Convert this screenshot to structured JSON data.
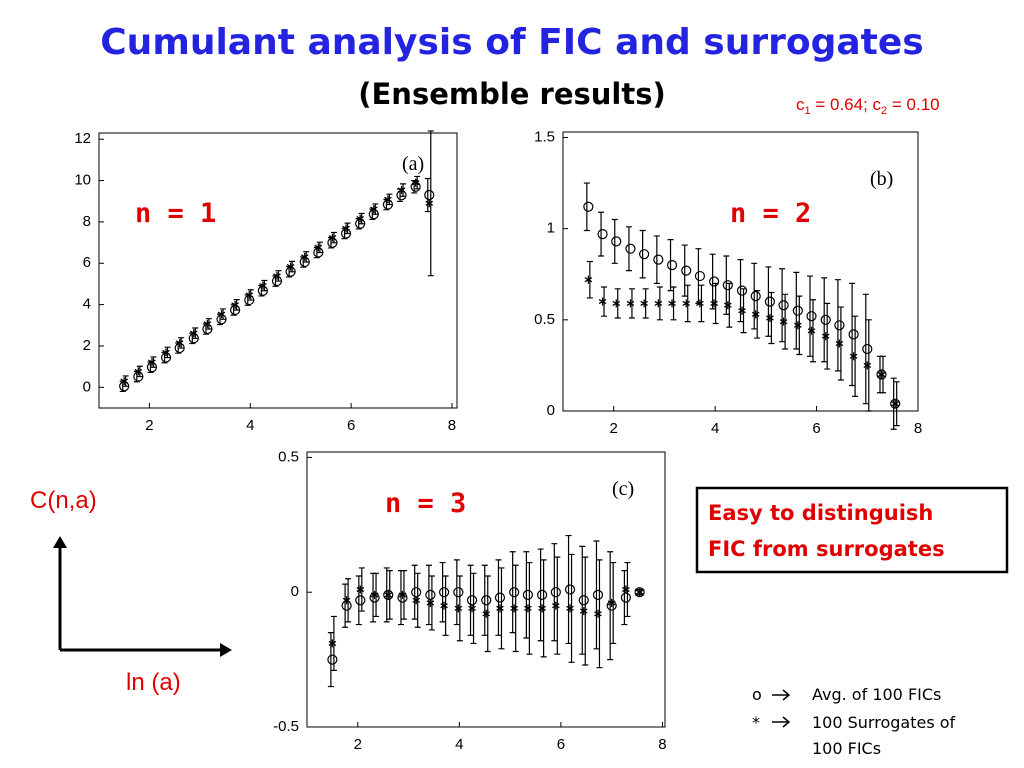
{
  "title": "Cumulant analysis of FIC and surrogates",
  "subtitle": "(Ensemble results)",
  "note": [
    "c",
    "1",
    " = 0.64; c",
    "2",
    " = 0.10"
  ],
  "y_label": "C(n,a)",
  "x_label": "ln (a)",
  "callout": [
    "Easy to distinguish",
    "FIC from surrogates"
  ],
  "legend": [
    {
      "symbol": "o",
      "text": [
        "Avg. of 100 FICs"
      ]
    },
    {
      "symbol": "*",
      "text": [
        "100 Surrogates of",
        "100 FICs"
      ]
    }
  ],
  "chart_data": [
    {
      "type": "scatter",
      "label": "(a)",
      "annotation": "n = 1",
      "x": [
        1.5,
        1.78,
        2.05,
        2.33,
        2.6,
        2.88,
        3.15,
        3.43,
        3.7,
        3.98,
        4.25,
        4.53,
        4.8,
        5.08,
        5.35,
        5.63,
        5.9,
        6.18,
        6.45,
        6.73,
        7.0,
        7.28,
        7.55
      ],
      "series": [
        {
          "marker": "o",
          "color": "#000000",
          "values": [
            0.05,
            0.52,
            0.97,
            1.44,
            1.9,
            2.37,
            2.82,
            3.29,
            3.74,
            4.22,
            4.67,
            5.14,
            5.59,
            6.06,
            6.52,
            6.99,
            7.44,
            7.91,
            8.37,
            8.84,
            9.29,
            9.7,
            9.3
          ],
          "errors": [
            0.25,
            0.25,
            0.25,
            0.25,
            0.25,
            0.25,
            0.25,
            0.25,
            0.25,
            0.25,
            0.25,
            0.25,
            0.25,
            0.25,
            0.25,
            0.25,
            0.25,
            0.25,
            0.25,
            0.25,
            0.3,
            0.3,
            0.8
          ]
        },
        {
          "marker": "*",
          "color": "#000000",
          "values": [
            0.3,
            0.77,
            1.22,
            1.69,
            2.15,
            2.62,
            3.07,
            3.54,
            3.99,
            4.47,
            4.92,
            5.39,
            5.84,
            6.31,
            6.77,
            7.24,
            7.69,
            8.16,
            8.62,
            9.09,
            9.54,
            9.9,
            8.9
          ],
          "errors": [
            0.25,
            0.25,
            0.25,
            0.25,
            0.25,
            0.25,
            0.25,
            0.25,
            0.25,
            0.25,
            0.25,
            0.25,
            0.25,
            0.25,
            0.25,
            0.25,
            0.25,
            0.25,
            0.25,
            0.25,
            0.3,
            0.3,
            3.5
          ]
        }
      ],
      "xlim": [
        1,
        8.1
      ],
      "ylim": [
        -1,
        12.3
      ],
      "xticks": [
        2,
        4,
        6,
        8
      ],
      "yticks": [
        0,
        2,
        4,
        6,
        8,
        10,
        12
      ]
    },
    {
      "type": "scatter",
      "label": "(b)",
      "annotation": "n = 2",
      "x": [
        1.5,
        1.78,
        2.05,
        2.33,
        2.6,
        2.88,
        3.15,
        3.43,
        3.7,
        3.98,
        4.25,
        4.53,
        4.8,
        5.08,
        5.35,
        5.63,
        5.9,
        6.18,
        6.45,
        6.73,
        7.0,
        7.28,
        7.55
      ],
      "series": [
        {
          "marker": "o",
          "color": "#000000",
          "values": [
            1.12,
            0.97,
            0.93,
            0.89,
            0.86,
            0.83,
            0.8,
            0.77,
            0.74,
            0.71,
            0.69,
            0.66,
            0.63,
            0.6,
            0.58,
            0.55,
            0.52,
            0.5,
            0.47,
            0.42,
            0.34,
            0.2,
            0.04
          ],
          "errors": [
            0.13,
            0.12,
            0.12,
            0.12,
            0.13,
            0.13,
            0.14,
            0.14,
            0.15,
            0.15,
            0.16,
            0.17,
            0.18,
            0.19,
            0.2,
            0.21,
            0.22,
            0.23,
            0.25,
            0.28,
            0.3,
            0.1,
            0.14
          ]
        },
        {
          "marker": "*",
          "color": "#000000",
          "values": [
            0.72,
            0.6,
            0.59,
            0.59,
            0.59,
            0.59,
            0.59,
            0.59,
            0.59,
            0.59,
            0.58,
            0.55,
            0.53,
            0.51,
            0.49,
            0.47,
            0.44,
            0.41,
            0.37,
            0.3,
            0.25,
            0.2,
            0.04
          ],
          "errors": [
            0.1,
            0.08,
            0.08,
            0.08,
            0.08,
            0.09,
            0.09,
            0.1,
            0.1,
            0.11,
            0.12,
            0.12,
            0.13,
            0.14,
            0.15,
            0.16,
            0.17,
            0.18,
            0.2,
            0.22,
            0.25,
            0.1,
            0.12
          ]
        }
      ],
      "xlim": [
        1,
        8
      ],
      "ylim": [
        0,
        1.53
      ],
      "xticks": [
        2,
        4,
        6,
        8
      ],
      "yticks": [
        0,
        0.5,
        1,
        1.5
      ]
    },
    {
      "type": "scatter",
      "label": "(c)",
      "annotation": "n = 3",
      "x": [
        1.5,
        1.78,
        2.05,
        2.33,
        2.6,
        2.88,
        3.15,
        3.43,
        3.7,
        3.98,
        4.25,
        4.53,
        4.8,
        5.08,
        5.35,
        5.63,
        5.9,
        6.18,
        6.45,
        6.73,
        7.0,
        7.28,
        7.55
      ],
      "series": [
        {
          "marker": "o",
          "color": "#000000",
          "values": [
            -0.25,
            -0.05,
            -0.03,
            -0.02,
            -0.01,
            -0.02,
            0,
            -0.01,
            0,
            0,
            -0.03,
            -0.03,
            -0.02,
            0,
            -0.01,
            -0.01,
            0,
            0.01,
            -0.03,
            -0.01,
            -0.05,
            -0.02,
            0
          ],
          "errors": [
            0.1,
            0.08,
            0.09,
            0.09,
            0.1,
            0.1,
            0.1,
            0.11,
            0.11,
            0.12,
            0.13,
            0.13,
            0.14,
            0.15,
            0.16,
            0.17,
            0.18,
            0.2,
            0.2,
            0.2,
            0.2,
            0.1,
            0.01
          ]
        },
        {
          "marker": "*",
          "color": "#000000",
          "values": [
            -0.19,
            -0.03,
            0.01,
            -0.01,
            -0.01,
            -0.01,
            -0.03,
            -0.04,
            -0.05,
            -0.06,
            -0.06,
            -0.08,
            -0.06,
            -0.06,
            -0.06,
            -0.06,
            -0.05,
            -0.06,
            -0.07,
            -0.08,
            -0.04,
            0.01,
            0
          ],
          "errors": [
            0.1,
            0.08,
            0.08,
            0.08,
            0.09,
            0.09,
            0.1,
            0.1,
            0.11,
            0.12,
            0.13,
            0.14,
            0.15,
            0.16,
            0.17,
            0.18,
            0.18,
            0.2,
            0.2,
            0.2,
            0.15,
            0.1,
            0.01
          ]
        }
      ],
      "xlim": [
        1,
        8.05
      ],
      "ylim": [
        -0.5,
        0.52
      ],
      "xticks": [
        2,
        4,
        6,
        8
      ],
      "yticks": [
        -0.5,
        0,
        0.5
      ]
    }
  ]
}
